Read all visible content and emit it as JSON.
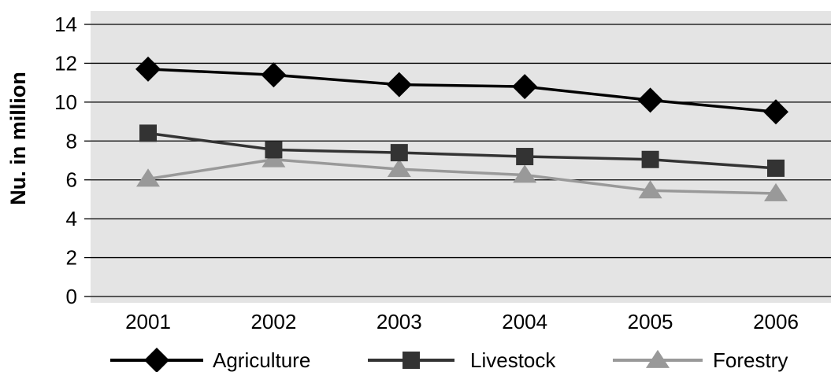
{
  "chart_data": {
    "type": "line",
    "title": "",
    "xlabel": "",
    "ylabel": "Nu. in million",
    "categories": [
      "2001",
      "2002",
      "2003",
      "2004",
      "2005",
      "2006"
    ],
    "ylim": [
      0,
      14
    ],
    "yticks": [
      0,
      2,
      4,
      6,
      8,
      10,
      12,
      14
    ],
    "grid": "horizontal",
    "background": "#e4e4e4",
    "legend_position": "bottom",
    "series": [
      {
        "name": "Agriculture",
        "values": [
          11.7,
          11.4,
          10.9,
          10.8,
          10.1,
          9.5
        ],
        "color": "#000000",
        "marker": "diamond"
      },
      {
        "name": "Livestock",
        "values": [
          8.4,
          7.55,
          7.4,
          7.2,
          7.05,
          6.6
        ],
        "color": "#333333",
        "marker": "square"
      },
      {
        "name": "Forestry",
        "values": [
          6.05,
          7.05,
          6.55,
          6.25,
          5.45,
          5.3
        ],
        "color": "#999999",
        "marker": "triangle"
      }
    ]
  }
}
